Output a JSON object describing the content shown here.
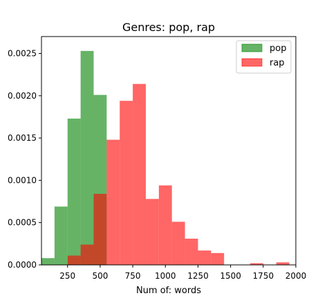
{
  "chart_data": {
    "type": "histogram",
    "title": "Genres: pop, rap",
    "xlabel": "Num of: words",
    "ylabel": "",
    "xlim": [
      50,
      2000
    ],
    "ylim": [
      0,
      0.0027
    ],
    "xticks": [
      250,
      500,
      750,
      1000,
      1250,
      1500,
      1750,
      2000
    ],
    "yticks": [
      0.0,
      0.0005,
      0.001,
      0.0015,
      0.002,
      0.0025
    ],
    "ytick_labels": [
      "0.0000",
      "0.0005",
      "0.0010",
      "0.0015",
      "0.0020",
      "0.0025"
    ],
    "grid": false,
    "legend_position": "top-right",
    "series": [
      {
        "name": "pop",
        "color": "#008000",
        "alpha": 0.6,
        "bin_edges": [
          50,
          150,
          250,
          350,
          450,
          550
        ],
        "values": [
          8e-05,
          0.00069,
          0.00173,
          0.00253,
          0.00201
        ]
      },
      {
        "name": "rap",
        "color": "#ff0000",
        "alpha": 0.6,
        "bin_edges": [
          250,
          350,
          450,
          550,
          650,
          750,
          850,
          950,
          1050,
          1150,
          1250,
          1350,
          1450,
          1550,
          1650,
          1750,
          1850,
          1950,
          2050
        ],
        "values": [
          0.00011,
          0.00024,
          0.00084,
          0.00148,
          0.00194,
          0.00214,
          0.00078,
          0.00094,
          0.00051,
          0.00031,
          0.00017,
          0.00014,
          0.0,
          0.0,
          2e-05,
          0.0,
          3e-05,
          0.0
        ]
      }
    ]
  }
}
